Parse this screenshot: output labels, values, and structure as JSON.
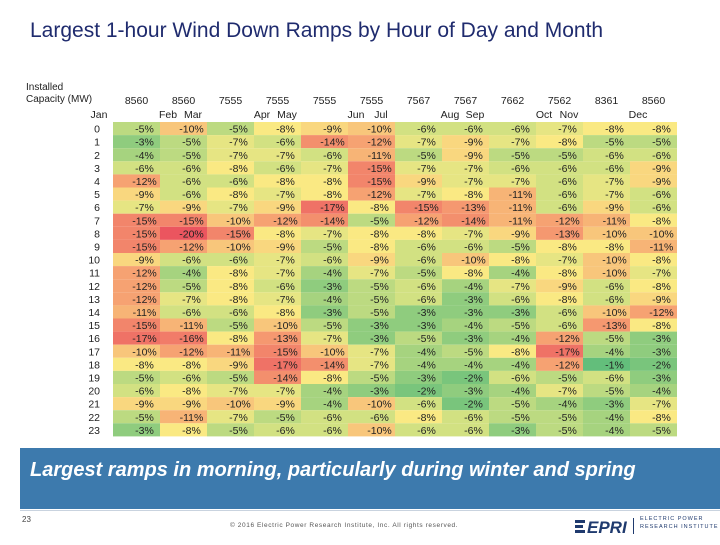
{
  "title": "Largest 1-hour Wind Down Ramps by Hour of Day and Month",
  "installed_label_line1": "Installed",
  "installed_label_line2": "Capacity (MW)",
  "chart_data": {
    "type": "heatmap",
    "title": "Largest 1-hour Wind Down Ramps by Hour of Day and Month",
    "capacities": [
      "8560",
      "8560",
      "7555",
      "7555",
      "7555",
      "7555",
      "7567",
      "7567",
      "7662",
      "7562",
      "8361",
      "8560"
    ],
    "months": [
      "Jan",
      "Feb",
      "Mar",
      "Apr",
      "May",
      "Jun",
      "Jul",
      "Aug",
      "Sep",
      "Oct",
      "Nov",
      "Dec"
    ],
    "hours": [
      "0",
      "1",
      "2",
      "3",
      "4",
      "5",
      "6",
      "7",
      "8",
      "9",
      "10",
      "11",
      "12",
      "13",
      "14",
      "15",
      "16",
      "17",
      "18",
      "19",
      "20",
      "21",
      "22",
      "23"
    ],
    "values": [
      [
        -5,
        -10,
        -5,
        -8,
        -9,
        -10,
        -6,
        -6,
        -6,
        -7,
        -8,
        -8
      ],
      [
        -3,
        -5,
        -7,
        -6,
        -14,
        -12,
        -7,
        -9,
        -7,
        -8,
        -5,
        -5
      ],
      [
        -4,
        -5,
        -7,
        -7,
        -6,
        -11,
        -5,
        -9,
        -5,
        -5,
        -6,
        -6
      ],
      [
        -6,
        -6,
        -8,
        -6,
        -7,
        -15,
        -7,
        -7,
        -6,
        -6,
        -6,
        -9
      ],
      [
        -12,
        -6,
        -6,
        -8,
        -8,
        -15,
        -9,
        -7,
        -7,
        -6,
        -7,
        -9
      ],
      [
        -9,
        -6,
        -8,
        -7,
        -8,
        -12,
        -7,
        -8,
        -11,
        -6,
        -7,
        -6
      ],
      [
        -7,
        -9,
        -7,
        -9,
        -17,
        -8,
        -15,
        -13,
        -11,
        -6,
        -9,
        -6
      ],
      [
        -15,
        -15,
        -10,
        -12,
        -14,
        -5,
        -12,
        -14,
        -11,
        -12,
        -11,
        -8
      ],
      [
        -15,
        -20,
        -15,
        -8,
        -7,
        -8,
        -8,
        -7,
        -9,
        -13,
        -10,
        -10
      ],
      [
        -15,
        -12,
        -10,
        -9,
        -5,
        -8,
        -6,
        -6,
        -5,
        -8,
        -8,
        -11
      ],
      [
        -9,
        -6,
        -6,
        -7,
        -6,
        -9,
        -6,
        -10,
        -8,
        -7,
        -10,
        -8
      ],
      [
        -12,
        -4,
        -8,
        -7,
        -4,
        -7,
        -5,
        -8,
        -4,
        -8,
        -10,
        -7
      ],
      [
        -12,
        -5,
        -8,
        -6,
        -3,
        -5,
        -6,
        -4,
        -7,
        -9,
        -6,
        -8
      ],
      [
        -12,
        -7,
        -8,
        -7,
        -4,
        -5,
        -6,
        -3,
        -6,
        -8,
        -6,
        -9
      ],
      [
        -11,
        -6,
        -6,
        -8,
        -3,
        -5,
        -3,
        -3,
        -3,
        -6,
        -10,
        -12
      ],
      [
        -15,
        -11,
        -5,
        -10,
        -5,
        -3,
        -3,
        -4,
        -5,
        -6,
        -13,
        -8
      ],
      [
        -17,
        -16,
        -8,
        -13,
        -7,
        -3,
        -5,
        -3,
        -4,
        -12,
        -5,
        -3
      ],
      [
        -10,
        -12,
        -11,
        -15,
        -10,
        -7,
        -4,
        -5,
        -8,
        -17,
        -4,
        -3
      ],
      [
        -8,
        -8,
        -9,
        -17,
        -14,
        -7,
        -4,
        -4,
        -4,
        -12,
        -1,
        -2
      ],
      [
        -5,
        -6,
        -5,
        -14,
        -8,
        -5,
        -3,
        -2,
        -6,
        -5,
        -6,
        -3
      ],
      [
        -6,
        -8,
        -7,
        -7,
        -4,
        -3,
        -2,
        -3,
        -4,
        -7,
        -5,
        -4
      ],
      [
        -9,
        -9,
        -10,
        -9,
        -4,
        -10,
        -6,
        -2,
        -5,
        -4,
        -3,
        -7
      ],
      [
        -5,
        -11,
        -7,
        -5,
        -6,
        -6,
        -8,
        -6,
        -5,
        -5,
        -4,
        -8
      ],
      [
        -3,
        -8,
        -5,
        -6,
        -6,
        -10,
        -6,
        -6,
        -3,
        -5,
        -4,
        -5
      ]
    ]
  },
  "banner": "Largest ramps in morning, particularly during winter and spring",
  "footer": {
    "page_number": "23",
    "copyright": "© 2016 Electric Power Research Institute, Inc. All rights reserved.",
    "logo_text": "EPRI",
    "logo_sub_line1": "ELECTRIC POWER",
    "logo_sub_line2": "RESEARCH INSTITUTE",
    "logo_color": "#1f3a6e"
  }
}
